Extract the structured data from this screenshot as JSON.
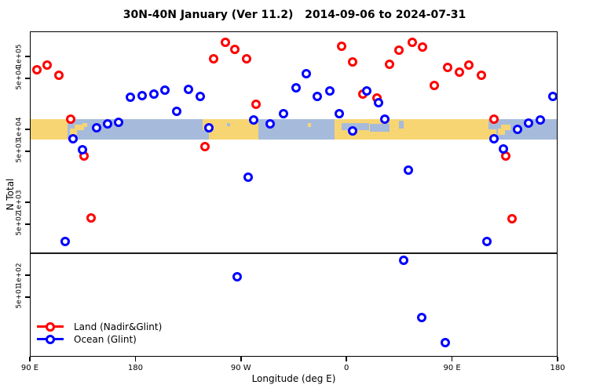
{
  "title": "30N-40N January (Ver 11.2)   2014-09-06 to 2024-07-31",
  "chart_data": {
    "type": "scatter",
    "title": "30N-40N January (Ver 11.2)   2014-09-06 to 2024-07-31",
    "xlabel": "Longitude (deg E)",
    "ylabel": "N Total",
    "x_axis": {
      "lim": [
        90,
        540
      ],
      "ticks": [
        {
          "value": 90,
          "label": "90 E"
        },
        {
          "value": 180,
          "label": "180"
        },
        {
          "value": 270,
          "label": "90 W"
        },
        {
          "value": 360,
          "label": "0"
        },
        {
          "value": 450,
          "label": "90 E"
        },
        {
          "value": 540,
          "label": "180"
        }
      ]
    },
    "y_axis": {
      "scale": "log",
      "lim": [
        7.6,
        220000
      ],
      "ticks": [
        {
          "value": 100000,
          "label": "1e+05"
        },
        {
          "value": 50000,
          "label": "5e+04"
        },
        {
          "value": 10000,
          "label": "1e+04"
        },
        {
          "value": 5000,
          "label": "5e+03"
        },
        {
          "value": 1000,
          "label": "1e+03"
        },
        {
          "value": 500,
          "label": "5e+02"
        },
        {
          "value": 100,
          "label": "1e+02"
        },
        {
          "value": 50,
          "label": "5e+01"
        }
      ]
    },
    "reference_line_y": 200,
    "map_band": {
      "y_top": 13800,
      "y_bottom": 7250,
      "land_color": "#F7D573",
      "ocean_color": "#A6BBDB",
      "segments": [
        {
          "type": "land",
          "lon": [
            90,
            122
          ]
        },
        {
          "type": "ocean",
          "lon": [
            122,
            237
          ]
        },
        {
          "type": "land",
          "lon": [
            237,
            285
          ]
        },
        {
          "type": "ocean",
          "lon": [
            285,
            350
          ]
        },
        {
          "type": "land",
          "lon": [
            350,
            488
          ]
        },
        {
          "type": "ocean",
          "lon": [
            488,
            540
          ]
        }
      ],
      "patches": [
        {
          "type": "land",
          "lon": [
            124,
            130
          ],
          "frac": [
            0.45,
            0.78
          ]
        },
        {
          "type": "land",
          "lon": [
            128,
            136
          ],
          "frac": [
            0.28,
            0.56
          ]
        },
        {
          "type": "land",
          "lon": [
            135,
            139
          ],
          "frac": [
            0.18,
            0.4
          ]
        },
        {
          "type": "ocean",
          "lon": [
            237,
            243
          ],
          "frac": [
            0.55,
            1.0
          ]
        },
        {
          "type": "ocean",
          "lon": [
            258,
            261
          ],
          "frac": [
            0.18,
            0.35
          ]
        },
        {
          "type": "land",
          "lon": [
            327,
            330
          ],
          "frac": [
            0.2,
            0.38
          ]
        },
        {
          "type": "ocean",
          "lon": [
            356,
            379
          ],
          "frac": [
            0.18,
            0.55
          ]
        },
        {
          "type": "ocean",
          "lon": [
            380,
            397
          ],
          "frac": [
            0.25,
            0.62
          ]
        },
        {
          "type": "ocean",
          "lon": [
            405,
            409
          ],
          "frac": [
            0.08,
            0.45
          ]
        },
        {
          "type": "ocean",
          "lon": [
            481,
            488
          ],
          "frac": [
            0.0,
            0.5
          ]
        },
        {
          "type": "land",
          "lon": [
            489,
            495
          ],
          "frac": [
            0.45,
            0.78
          ]
        },
        {
          "type": "land",
          "lon": [
            492,
            500
          ],
          "frac": [
            0.28,
            0.56
          ]
        }
      ]
    },
    "series": [
      {
        "name": "Land (Nadir&Glint)",
        "color": "#FF0000",
        "points": [
          [
            96,
            66000
          ],
          [
            105,
            75000
          ],
          [
            115,
            55000
          ],
          [
            125,
            13800
          ],
          [
            136,
            4300
          ],
          [
            142,
            610
          ],
          [
            239,
            5800
          ],
          [
            247,
            92000
          ],
          [
            257,
            156000
          ],
          [
            265,
            125000
          ],
          [
            275,
            93000
          ],
          [
            283,
            22000
          ],
          [
            356,
            138000
          ],
          [
            365,
            84000
          ],
          [
            374,
            30500
          ],
          [
            386,
            27000
          ],
          [
            397,
            78000
          ],
          [
            405,
            120000
          ],
          [
            416,
            156000
          ],
          [
            425,
            134000
          ],
          [
            435,
            39500
          ],
          [
            446,
            71000
          ],
          [
            456,
            61000
          ],
          [
            464,
            75000
          ],
          [
            475,
            55000
          ],
          [
            486,
            13800
          ],
          [
            496,
            4300
          ],
          [
            501,
            600
          ]
        ]
      },
      {
        "name": "Ocean (Glint)",
        "color": "#0000FF",
        "points": [
          [
            120,
            290
          ],
          [
            127,
            7400
          ],
          [
            135,
            5300
          ],
          [
            147,
            10500
          ],
          [
            156,
            11900
          ],
          [
            166,
            12600
          ],
          [
            176,
            27600
          ],
          [
            186,
            29000
          ],
          [
            196,
            30500
          ],
          [
            205,
            34600
          ],
          [
            215,
            17800
          ],
          [
            225,
            35000
          ],
          [
            235,
            28300
          ],
          [
            243,
            10500
          ],
          [
            267,
            95
          ],
          [
            276,
            2200
          ],
          [
            281,
            13500
          ],
          [
            295,
            11900
          ],
          [
            306,
            16400
          ],
          [
            317,
            37000
          ],
          [
            326,
            58000
          ],
          [
            335,
            28300
          ],
          [
            346,
            33800
          ],
          [
            354,
            16400
          ],
          [
            365,
            9500
          ],
          [
            377,
            33800
          ],
          [
            387,
            23300
          ],
          [
            393,
            13800
          ],
          [
            409,
            160
          ],
          [
            413,
            2760
          ],
          [
            424,
            26
          ],
          [
            444,
            12
          ],
          [
            480,
            290
          ],
          [
            486,
            7400
          ],
          [
            494,
            5400
          ],
          [
            506,
            10000
          ],
          [
            515,
            12200
          ],
          [
            525,
            13300
          ],
          [
            536,
            28000
          ]
        ]
      }
    ]
  },
  "legend": {
    "items": [
      {
        "label": "Land (Nadir&Glint)",
        "color": "#FF0000"
      },
      {
        "label": "Ocean (Glint)",
        "color": "#0000FF"
      }
    ]
  }
}
